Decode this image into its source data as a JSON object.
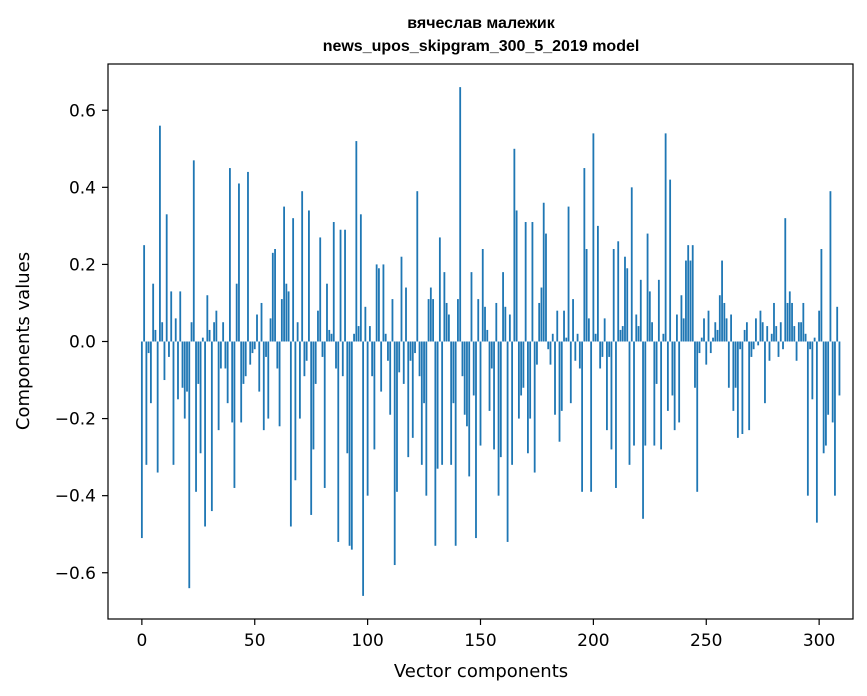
{
  "chart_data": {
    "type": "bar",
    "title_line1": "вячеслав малежик",
    "title_line2": "news_upos_skipgram_300_5_2019 model",
    "xlabel": "Vector components",
    "ylabel": "Components values",
    "xlim": [
      -15,
      315
    ],
    "ylim": [
      -0.72,
      0.72
    ],
    "xticks": [
      0,
      50,
      100,
      150,
      200,
      250,
      300
    ],
    "xtick_labels": [
      "0",
      "50",
      "100",
      "150",
      "200",
      "250",
      "300"
    ],
    "yticks": [
      -0.6,
      -0.4,
      -0.2,
      0.0,
      0.2,
      0.4,
      0.6
    ],
    "ytick_labels": [
      "−0.6",
      "−0.4",
      "−0.2",
      "0.0",
      "0.2",
      "0.4",
      "0.6"
    ],
    "bar_color": "#1f77b4",
    "values": [
      -0.51,
      0.25,
      -0.32,
      -0.03,
      -0.16,
      0.15,
      0.03,
      -0.34,
      0.56,
      0.05,
      -0.1,
      0.33,
      -0.04,
      0.13,
      -0.32,
      0.06,
      -0.15,
      0.13,
      -0.12,
      -0.2,
      -0.13,
      -0.64,
      0.05,
      0.47,
      -0.39,
      -0.11,
      -0.29,
      0.01,
      -0.48,
      0.12,
      0.03,
      -0.44,
      0.05,
      0.08,
      -0.23,
      -0.07,
      0.05,
      -0.07,
      -0.16,
      0.45,
      -0.21,
      -0.38,
      0.15,
      0.41,
      -0.21,
      -0.11,
      -0.09,
      0.44,
      -0.06,
      -0.03,
      -0.02,
      0.07,
      -0.13,
      0.1,
      -0.23,
      -0.04,
      -0.2,
      0.06,
      0.23,
      0.24,
      -0.07,
      -0.22,
      0.11,
      0.35,
      0.15,
      0.13,
      -0.48,
      0.32,
      -0.36,
      0.05,
      -0.2,
      0.39,
      -0.09,
      -0.05,
      0.34,
      -0.45,
      -0.28,
      -0.11,
      0.08,
      0.27,
      -0.04,
      -0.38,
      0.15,
      0.03,
      0.02,
      0.31,
      -0.07,
      -0.52,
      0.29,
      -0.09,
      0.29,
      -0.29,
      -0.53,
      -0.54,
      0.02,
      0.52,
      0.04,
      0.33,
      -0.66,
      0.09,
      -0.4,
      0.04,
      -0.09,
      -0.28,
      0.2,
      0.19,
      -0.13,
      0.2,
      0.02,
      -0.05,
      -0.19,
      0.11,
      -0.58,
      -0.39,
      -0.08,
      0.22,
      -0.11,
      0.14,
      -0.3,
      -0.05,
      -0.25,
      -0.03,
      0.39,
      -0.09,
      -0.32,
      -0.16,
      -0.4,
      0.11,
      0.14,
      0.11,
      -0.53,
      -0.33,
      0.27,
      -0.32,
      0.18,
      0.1,
      0.07,
      -0.32,
      -0.16,
      -0.53,
      0.11,
      0.66,
      -0.09,
      -0.19,
      -0.22,
      -0.35,
      0.18,
      -0.14,
      -0.51,
      0.11,
      -0.27,
      0.24,
      0.09,
      0.03,
      -0.18,
      -0.07,
      -0.28,
      0.1,
      -0.4,
      -0.3,
      0.18,
      0.09,
      -0.52,
      0.07,
      -0.32,
      0.5,
      0.34,
      -0.2,
      -0.14,
      -0.12,
      0.31,
      -0.29,
      -0.2,
      0.31,
      -0.34,
      -0.06,
      0.1,
      0.14,
      0.36,
      0.28,
      -0.02,
      -0.06,
      0.02,
      -0.19,
      0.08,
      -0.26,
      -0.18,
      0.08,
      0.01,
      0.35,
      -0.16,
      0.11,
      -0.05,
      0.02,
      -0.07,
      -0.39,
      0.45,
      0.24,
      0.06,
      -0.39,
      0.54,
      0.02,
      0.3,
      -0.07,
      -0.04,
      0.06,
      -0.23,
      -0.04,
      -0.28,
      0.24,
      -0.38,
      0.26,
      0.03,
      0.04,
      0.22,
      0.19,
      -0.32,
      0.4,
      -0.27,
      0.07,
      0.04,
      0.16,
      -0.46,
      -0.27,
      0.28,
      0.13,
      0.05,
      -0.27,
      -0.11,
      0.16,
      -0.28,
      0.02,
      0.54,
      -0.18,
      0.42,
      -0.14,
      -0.23,
      0.07,
      -0.21,
      0.12,
      0.06,
      0.21,
      0.25,
      0.21,
      0.25,
      -0.12,
      -0.39,
      -0.03,
      0.01,
      0.06,
      -0.06,
      0.08,
      -0.03,
      0.01,
      0.05,
      0.03,
      0.12,
      0.21,
      0.1,
      0.06,
      -0.12,
      0.07,
      -0.18,
      -0.12,
      -0.25,
      -0.02,
      -0.24,
      0.03,
      0.05,
      -0.23,
      -0.04,
      -0.02,
      0.06,
      -0.01,
      0.08,
      0.05,
      -0.16,
      0.04,
      -0.05,
      0.02,
      0.1,
      0.04,
      -0.04,
      0.05,
      -0.02,
      0.32,
      0.1,
      0.13,
      0.1,
      0.04,
      -0.05,
      0.05,
      0.05,
      0.1,
      0.02,
      -0.4,
      -0.02,
      -0.15,
      0.01,
      -0.47,
      0.08,
      0.24,
      -0.29,
      -0.27,
      -0.19,
      0.39,
      -0.21,
      -0.4,
      0.09,
      -0.14
    ]
  }
}
